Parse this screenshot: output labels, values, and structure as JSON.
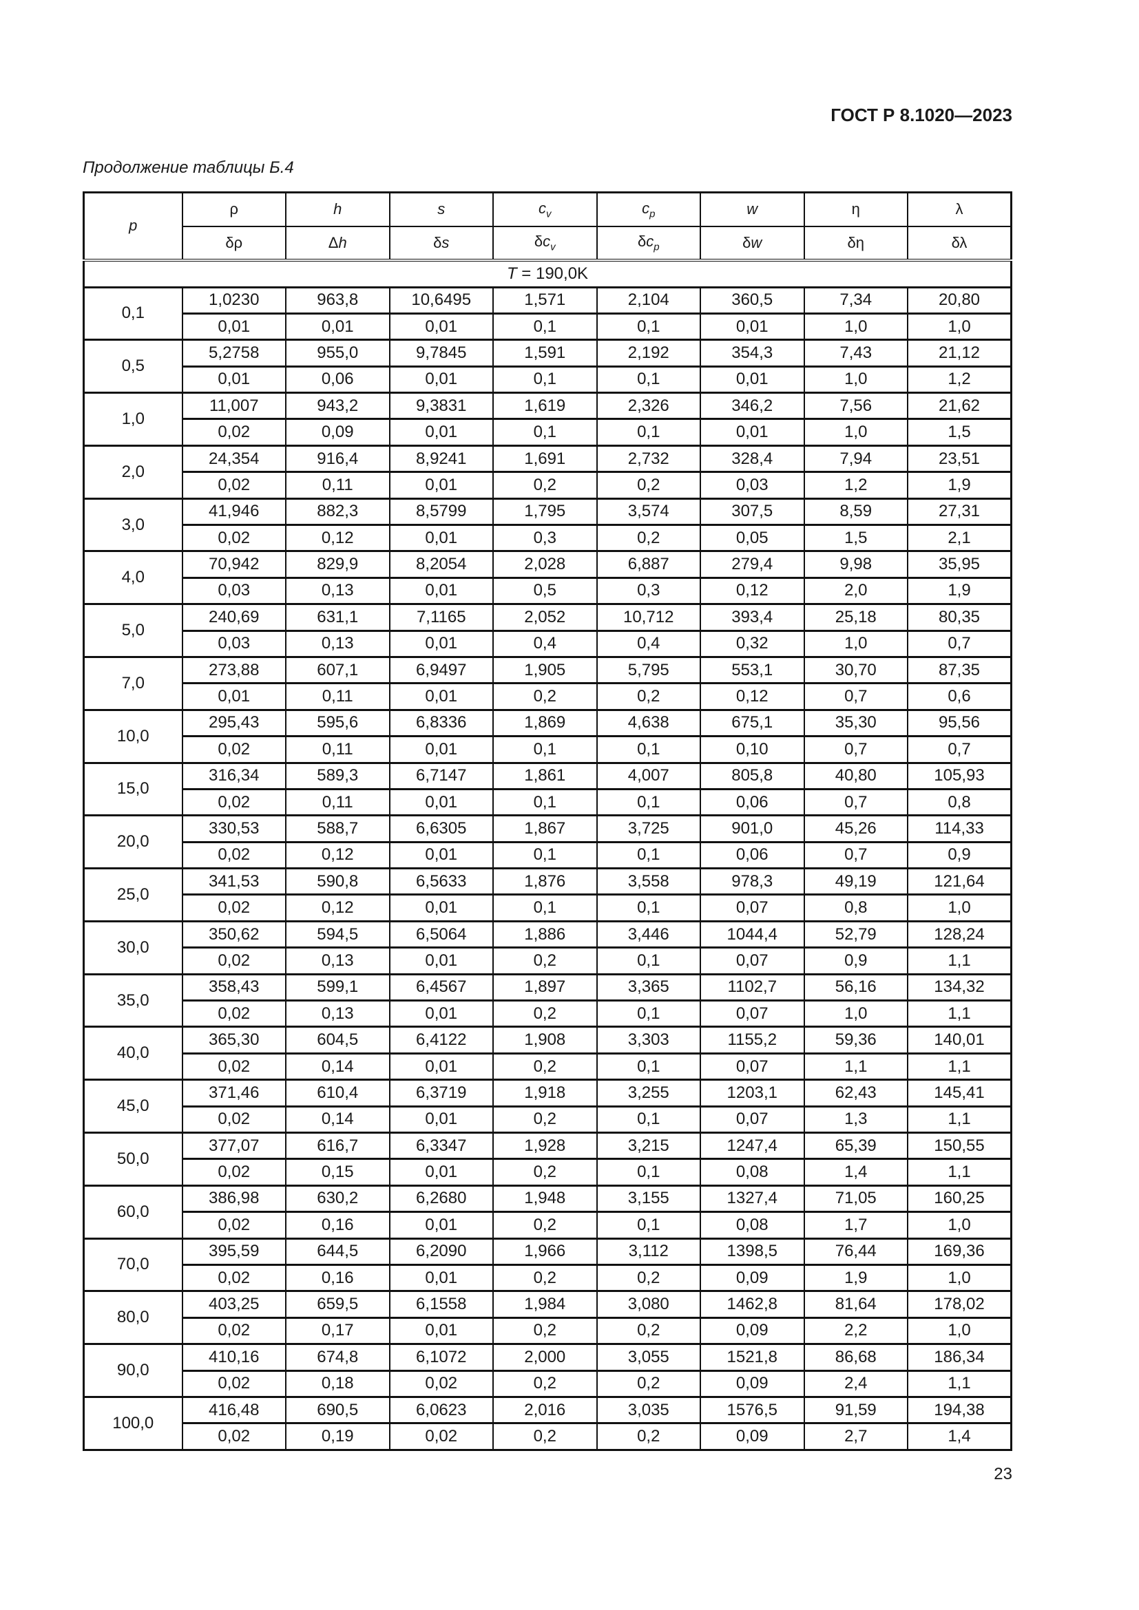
{
  "header": {
    "doc_id": "ГОСТ Р 8.1020—2023",
    "caption": "Продолжение таблицы Б.4"
  },
  "table": {
    "p_header": "p",
    "columns": [
      {
        "main": "ρ",
        "delta": "δρ"
      },
      {
        "main": "h",
        "delta": "Δh"
      },
      {
        "main": "s",
        "delta": "δs"
      },
      {
        "main": "c_v",
        "delta": "δc_v"
      },
      {
        "main": "c_p",
        "delta": "δc_p"
      },
      {
        "main": "w",
        "delta": "δw"
      },
      {
        "main": "η",
        "delta": "δη"
      },
      {
        "main": "λ",
        "delta": "δλ"
      }
    ],
    "temperature_label": "T = 190,0K",
    "rows": [
      {
        "p": "0,1",
        "values": [
          "1,0230",
          "963,8",
          "10,6495",
          "1,571",
          "2,104",
          "360,5",
          "7,34",
          "20,80"
        ],
        "deltas": [
          "0,01",
          "0,01",
          "0,01",
          "0,1",
          "0,1",
          "0,01",
          "1,0",
          "1,0"
        ]
      },
      {
        "p": "0,5",
        "values": [
          "5,2758",
          "955,0",
          "9,7845",
          "1,591",
          "2,192",
          "354,3",
          "7,43",
          "21,12"
        ],
        "deltas": [
          "0,01",
          "0,06",
          "0,01",
          "0,1",
          "0,1",
          "0,01",
          "1,0",
          "1,2"
        ]
      },
      {
        "p": "1,0",
        "values": [
          "11,007",
          "943,2",
          "9,3831",
          "1,619",
          "2,326",
          "346,2",
          "7,56",
          "21,62"
        ],
        "deltas": [
          "0,02",
          "0,09",
          "0,01",
          "0,1",
          "0,1",
          "0,01",
          "1,0",
          "1,5"
        ]
      },
      {
        "p": "2,0",
        "values": [
          "24,354",
          "916,4",
          "8,9241",
          "1,691",
          "2,732",
          "328,4",
          "7,94",
          "23,51"
        ],
        "deltas": [
          "0,02",
          "0,11",
          "0,01",
          "0,2",
          "0,2",
          "0,03",
          "1,2",
          "1,9"
        ]
      },
      {
        "p": "3,0",
        "values": [
          "41,946",
          "882,3",
          "8,5799",
          "1,795",
          "3,574",
          "307,5",
          "8,59",
          "27,31"
        ],
        "deltas": [
          "0,02",
          "0,12",
          "0,01",
          "0,3",
          "0,2",
          "0,05",
          "1,5",
          "2,1"
        ]
      },
      {
        "p": "4,0",
        "values": [
          "70,942",
          "829,9",
          "8,2054",
          "2,028",
          "6,887",
          "279,4",
          "9,98",
          "35,95"
        ],
        "deltas": [
          "0,03",
          "0,13",
          "0,01",
          "0,5",
          "0,3",
          "0,12",
          "2,0",
          "1,9"
        ]
      },
      {
        "p": "5,0",
        "values": [
          "240,69",
          "631,1",
          "7,1165",
          "2,052",
          "10,712",
          "393,4",
          "25,18",
          "80,35"
        ],
        "deltas": [
          "0,03",
          "0,13",
          "0,01",
          "0,4",
          "0,4",
          "0,32",
          "1,0",
          "0,7"
        ]
      },
      {
        "p": "7,0",
        "values": [
          "273,88",
          "607,1",
          "6,9497",
          "1,905",
          "5,795",
          "553,1",
          "30,70",
          "87,35"
        ],
        "deltas": [
          "0,01",
          "0,11",
          "0,01",
          "0,2",
          "0,2",
          "0,12",
          "0,7",
          "0,6"
        ]
      },
      {
        "p": "10,0",
        "values": [
          "295,43",
          "595,6",
          "6,8336",
          "1,869",
          "4,638",
          "675,1",
          "35,30",
          "95,56"
        ],
        "deltas": [
          "0,02",
          "0,11",
          "0,01",
          "0,1",
          "0,1",
          "0,10",
          "0,7",
          "0,7"
        ]
      },
      {
        "p": "15,0",
        "values": [
          "316,34",
          "589,3",
          "6,7147",
          "1,861",
          "4,007",
          "805,8",
          "40,80",
          "105,93"
        ],
        "deltas": [
          "0,02",
          "0,11",
          "0,01",
          "0,1",
          "0,1",
          "0,06",
          "0,7",
          "0,8"
        ]
      },
      {
        "p": "20,0",
        "values": [
          "330,53",
          "588,7",
          "6,6305",
          "1,867",
          "3,725",
          "901,0",
          "45,26",
          "114,33"
        ],
        "deltas": [
          "0,02",
          "0,12",
          "0,01",
          "0,1",
          "0,1",
          "0,06",
          "0,7",
          "0,9"
        ]
      },
      {
        "p": "25,0",
        "values": [
          "341,53",
          "590,8",
          "6,5633",
          "1,876",
          "3,558",
          "978,3",
          "49,19",
          "121,64"
        ],
        "deltas": [
          "0,02",
          "0,12",
          "0,01",
          "0,1",
          "0,1",
          "0,07",
          "0,8",
          "1,0"
        ]
      },
      {
        "p": "30,0",
        "values": [
          "350,62",
          "594,5",
          "6,5064",
          "1,886",
          "3,446",
          "1044,4",
          "52,79",
          "128,24"
        ],
        "deltas": [
          "0,02",
          "0,13",
          "0,01",
          "0,2",
          "0,1",
          "0,07",
          "0,9",
          "1,1"
        ]
      },
      {
        "p": "35,0",
        "values": [
          "358,43",
          "599,1",
          "6,4567",
          "1,897",
          "3,365",
          "1102,7",
          "56,16",
          "134,32"
        ],
        "deltas": [
          "0,02",
          "0,13",
          "0,01",
          "0,2",
          "0,1",
          "0,07",
          "1,0",
          "1,1"
        ]
      },
      {
        "p": "40,0",
        "values": [
          "365,30",
          "604,5",
          "6,4122",
          "1,908",
          "3,303",
          "1155,2",
          "59,36",
          "140,01"
        ],
        "deltas": [
          "0,02",
          "0,14",
          "0,01",
          "0,2",
          "0,1",
          "0,07",
          "1,1",
          "1,1"
        ]
      },
      {
        "p": "45,0",
        "values": [
          "371,46",
          "610,4",
          "6,3719",
          "1,918",
          "3,255",
          "1203,1",
          "62,43",
          "145,41"
        ],
        "deltas": [
          "0,02",
          "0,14",
          "0,01",
          "0,2",
          "0,1",
          "0,07",
          "1,3",
          "1,1"
        ]
      },
      {
        "p": "50,0",
        "values": [
          "377,07",
          "616,7",
          "6,3347",
          "1,928",
          "3,215",
          "1247,4",
          "65,39",
          "150,55"
        ],
        "deltas": [
          "0,02",
          "0,15",
          "0,01",
          "0,2",
          "0,1",
          "0,08",
          "1,4",
          "1,1"
        ]
      },
      {
        "p": "60,0",
        "values": [
          "386,98",
          "630,2",
          "6,2680",
          "1,948",
          "3,155",
          "1327,4",
          "71,05",
          "160,25"
        ],
        "deltas": [
          "0,02",
          "0,16",
          "0,01",
          "0,2",
          "0,1",
          "0,08",
          "1,7",
          "1,0"
        ]
      },
      {
        "p": "70,0",
        "values": [
          "395,59",
          "644,5",
          "6,2090",
          "1,966",
          "3,112",
          "1398,5",
          "76,44",
          "169,36"
        ],
        "deltas": [
          "0,02",
          "0,16",
          "0,01",
          "0,2",
          "0,2",
          "0,09",
          "1,9",
          "1,0"
        ]
      },
      {
        "p": "80,0",
        "values": [
          "403,25",
          "659,5",
          "6,1558",
          "1,984",
          "3,080",
          "1462,8",
          "81,64",
          "178,02"
        ],
        "deltas": [
          "0,02",
          "0,17",
          "0,01",
          "0,2",
          "0,2",
          "0,09",
          "2,2",
          "1,0"
        ]
      },
      {
        "p": "90,0",
        "values": [
          "410,16",
          "674,8",
          "6,1072",
          "2,000",
          "3,055",
          "1521,8",
          "86,68",
          "186,34"
        ],
        "deltas": [
          "0,02",
          "0,18",
          "0,02",
          "0,2",
          "0,2",
          "0,09",
          "2,4",
          "1,1"
        ]
      },
      {
        "p": "100,0",
        "values": [
          "416,48",
          "690,5",
          "6,0623",
          "2,016",
          "3,035",
          "1576,5",
          "91,59",
          "194,38"
        ],
        "deltas": [
          "0,02",
          "0,19",
          "0,02",
          "0,2",
          "0,2",
          "0,09",
          "2,7",
          "1,4"
        ]
      }
    ]
  },
  "footer": {
    "page_number": "23"
  }
}
